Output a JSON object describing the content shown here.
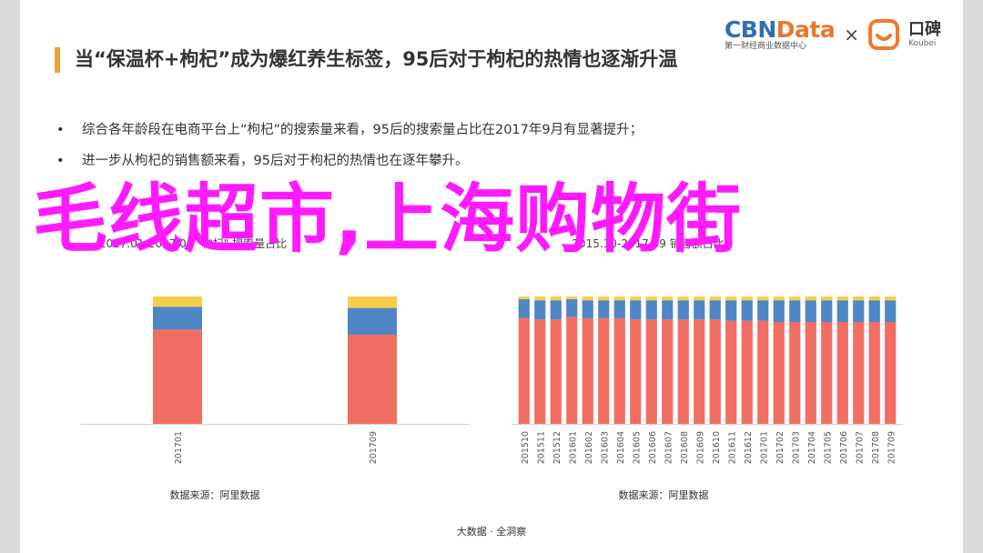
{
  "header": {
    "cbn_name": "CBN",
    "cbn_data": "Data",
    "cbn_sub": "第一财经商业数据中心",
    "times": "×",
    "koubei_name": "口碑",
    "koubei_sub": "Koubei"
  },
  "slide": {
    "title": "当“保温杯+枸杞”成为爆红养生标签，95后对于枸杞的热情也逐渐升温",
    "bullets": [
      "综合各年龄段在电商平台上“枸杞”的搜索量来看，95后的搜索量占比在2017年9月有显著提升；",
      "进一步从枸杞的销售额来看，95后对于枸杞的热情也在逐年攀升。"
    ],
    "overlay": "毛线超市,上海购物街",
    "footer": "大数据 · 全洞察"
  },
  "colors": {
    "bar_red": "#f06f62",
    "bar_blue": "#4f86c6",
    "bar_yellow": "#f7cd4a",
    "overlay_magenta": "#ff1aff",
    "title_accent": "#e8a33d"
  },
  "chart_data": [
    {
      "type": "bar",
      "stacked": true,
      "title": "2017.01-2017.09 \"枸杞\" 搜索量占比",
      "categories": [
        "201701",
        "201709"
      ],
      "series": [
        {
          "values": [
            0.74,
            0.7
          ]
        },
        {
          "values": [
            0.18,
            0.21
          ]
        },
        {
          "values": [
            0.08,
            0.09
          ]
        }
      ],
      "ylim": [
        0,
        1
      ],
      "source": "数据来源：阿里数据"
    },
    {
      "type": "bar",
      "stacked": true,
      "title": "2015.10-2017.09 销售额占比",
      "categories": [
        "201510",
        "201511",
        "201512",
        "201601",
        "201602",
        "201603",
        "201604",
        "201605",
        "201606",
        "201607",
        "201608",
        "201609",
        "201610",
        "201611",
        "201612",
        "201701",
        "201702",
        "201703",
        "201704",
        "201705",
        "201706",
        "201707",
        "201708",
        "201709"
      ],
      "series": [
        {
          "values": [
            0.83,
            0.82,
            0.82,
            0.84,
            0.83,
            0.83,
            0.83,
            0.82,
            0.82,
            0.82,
            0.82,
            0.82,
            0.82,
            0.81,
            0.81,
            0.81,
            0.8,
            0.8,
            0.8,
            0.8,
            0.8,
            0.8,
            0.8,
            0.8
          ]
        },
        {
          "values": [
            0.15,
            0.15,
            0.15,
            0.14,
            0.14,
            0.14,
            0.14,
            0.15,
            0.15,
            0.15,
            0.15,
            0.15,
            0.15,
            0.16,
            0.16,
            0.16,
            0.17,
            0.17,
            0.17,
            0.17,
            0.17,
            0.17,
            0.17,
            0.17
          ]
        },
        {
          "values": [
            0.02,
            0.03,
            0.03,
            0.02,
            0.03,
            0.03,
            0.03,
            0.03,
            0.03,
            0.03,
            0.03,
            0.03,
            0.03,
            0.03,
            0.03,
            0.03,
            0.03,
            0.03,
            0.03,
            0.03,
            0.03,
            0.03,
            0.03,
            0.03
          ]
        }
      ],
      "ylim": [
        0,
        1
      ],
      "source": "数据来源：阿里数据"
    }
  ]
}
